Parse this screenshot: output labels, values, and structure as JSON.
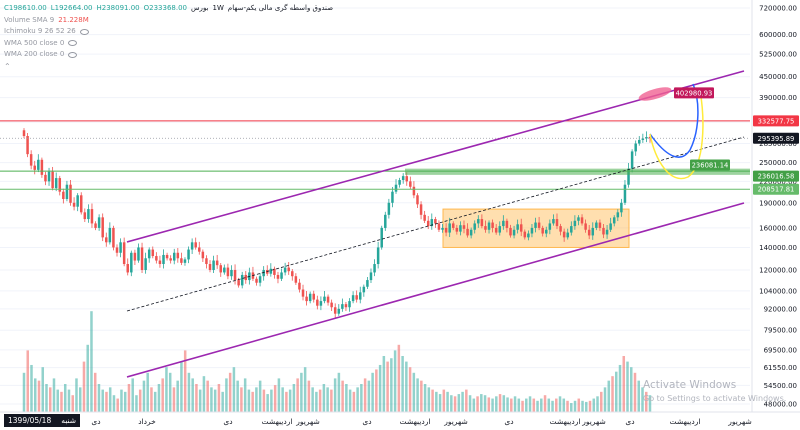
{
  "header": {
    "symbol_title": "صندوق واسطه گری مالی یکم-سهام",
    "interval": "1W",
    "exchange": "بورس",
    "ohlc": {
      "open": "O233368.00",
      "high": "H238091.00",
      "low": "L192664.00",
      "close": "C198610.00"
    },
    "volume_label": "Volume SMA 9",
    "volume_value": "21.228M",
    "indicators": [
      "Ichimoku 9 26 52 26",
      "WMA 500 close 0",
      "WMA 200 close 0"
    ]
  },
  "watermark": {
    "title": "Activate Windows",
    "subtitle": "Go to Settings to activate Windows."
  },
  "date_box": {
    "day": "شنبه",
    "date": "1399/05/18"
  },
  "colors": {
    "up": "#26a69a",
    "down": "#ef5350",
    "channel": "#9c27b0",
    "resistance": "#f23645",
    "support": "#4caf50",
    "zone": "#ffb74d",
    "arrow_blue": "#2962ff",
    "arrow_yellow": "#ffeb3b"
  },
  "chart_data": {
    "type": "candlestick",
    "y_scale": "log",
    "ylim": [
      50000,
      720000
    ],
    "y_ticks": [
      720000,
      600000,
      525000,
      450000,
      390000,
      330000,
      285000,
      250000,
      220000,
      190000,
      160000,
      140000,
      120000,
      104000,
      92000,
      79500,
      69500,
      61550,
      54500,
      48000
    ],
    "y_tick_labels": [
      "720000.00",
      "600000.00",
      "525000.00",
      "450000.00",
      "390000.00",
      "330000.00",
      "285000.00",
      "250000.00",
      "220000.00",
      "190000.00",
      "160000.00",
      "140000.00",
      "120000.00",
      "104000.00",
      "92000.00",
      "79500.00",
      "69500.00",
      "61550.00",
      "54500.00",
      "48000.00"
    ],
    "x_labels": [
      "دی",
      "خرداد",
      "دی",
      "اردیبهشت",
      "شهریور",
      "دی",
      "اردیبهشت",
      "شهریور",
      "دی",
      "اردیبهشت",
      "شهریور",
      "دی",
      "اردیبهشت",
      "شهریور"
    ],
    "price_labels": [
      {
        "value": 402980.93,
        "text": "402980.93",
        "color": "#c2185b"
      },
      {
        "value": 332577.75,
        "text": "332577.75",
        "color": "#f23645"
      },
      {
        "value": 295395.89,
        "text": "295395.89",
        "color": "#131722"
      },
      {
        "value": 236081.14,
        "text": "236081.14",
        "color": "#43a047"
      },
      {
        "value": 236016.58,
        "text": "236016.58",
        "color": "#43a047"
      },
      {
        "value": 208517.81,
        "text": "208517.81",
        "color": "#66bb6a"
      }
    ],
    "horizontal_levels": [
      {
        "value": 332577.75,
        "color": "#f23645"
      },
      {
        "value": 236016.58,
        "color": "#4caf50"
      },
      {
        "value": 208517.81,
        "color": "#66bb6a"
      }
    ],
    "close": [
      300000,
      265000,
      245000,
      238000,
      255000,
      230000,
      220000,
      235000,
      210000,
      225000,
      205000,
      195000,
      215000,
      190000,
      185000,
      200000,
      178000,
      170000,
      182000,
      165000,
      160000,
      172000,
      150000,
      145000,
      160000,
      140000,
      135000,
      145000,
      125000,
      118000,
      135000,
      128000,
      140000,
      120000,
      130000,
      138000,
      132000,
      128000,
      125000,
      133000,
      130000,
      128000,
      135000,
      130000,
      126000,
      129000,
      138000,
      145000,
      140000,
      136000,
      130000,
      125000,
      120000,
      128000,
      124000,
      118000,
      122000,
      115000,
      120000,
      112000,
      108000,
      116000,
      112000,
      118000,
      113000,
      110000,
      115000,
      120000,
      117000,
      121000,
      116000,
      113000,
      118000,
      122000,
      119000,
      115000,
      110000,
      105000,
      100000,
      97000,
      102000,
      98000,
      94000,
      97000,
      100000,
      96000,
      93000,
      89000,
      92000,
      95000,
      93000,
      97000,
      101000,
      98000,
      103000,
      107000,
      112000,
      118000,
      125000,
      140000,
      160000,
      175000,
      190000,
      205000,
      215000,
      222000,
      228000,
      220000,
      212000,
      200000,
      188000,
      175000,
      168000,
      162000,
      170000,
      165000,
      158000,
      160000,
      155000,
      165000,
      160000,
      156000,
      163000,
      159000,
      152000,
      158000,
      165000,
      170000,
      162000,
      158000,
      166000,
      160000,
      155000,
      162000,
      168000,
      160000,
      152000,
      158000,
      164000,
      156000,
      150000,
      154000,
      160000,
      166000,
      160000,
      154000,
      158000,
      165000,
      170000,
      162000,
      156000,
      150000,
      155000,
      162000,
      168000,
      172000,
      165000,
      158000,
      152000,
      160000,
      166000,
      160000,
      153000,
      158000,
      165000,
      172000,
      178000,
      190000,
      215000,
      240000,
      270000,
      285000,
      292000,
      295000,
      298000,
      295395
    ],
    "volume_heights": [
      0.35,
      0.55,
      0.42,
      0.3,
      0.28,
      0.4,
      0.25,
      0.22,
      0.3,
      0.2,
      0.18,
      0.25,
      0.2,
      0.15,
      0.3,
      0.22,
      0.45,
      0.6,
      0.9,
      0.35,
      0.25,
      0.2,
      0.18,
      0.22,
      0.15,
      0.12,
      0.2,
      0.18,
      0.25,
      0.3,
      0.15,
      0.2,
      0.28,
      0.35,
      0.22,
      0.18,
      0.25,
      0.3,
      0.4,
      0.35,
      0.22,
      0.28,
      0.45,
      0.55,
      0.35,
      0.3,
      0.25,
      0.2,
      0.32,
      0.28,
      0.22,
      0.2,
      0.25,
      0.18,
      0.3,
      0.35,
      0.4,
      0.28,
      0.22,
      0.3,
      0.2,
      0.18,
      0.22,
      0.28,
      0.2,
      0.16,
      0.2,
      0.24,
      0.3,
      0.22,
      0.18,
      0.2,
      0.25,
      0.3,
      0.35,
      0.4,
      0.28,
      0.22,
      0.18,
      0.2,
      0.25,
      0.22,
      0.2,
      0.3,
      0.35,
      0.28,
      0.25,
      0.2,
      0.18,
      0.22,
      0.25,
      0.3,
      0.28,
      0.35,
      0.38,
      0.42,
      0.5,
      0.45,
      0.48,
      0.55,
      0.6,
      0.5,
      0.45,
      0.4,
      0.35,
      0.3,
      0.28,
      0.25,
      0.22,
      0.2,
      0.18,
      0.16,
      0.2,
      0.18,
      0.15,
      0.14,
      0.16,
      0.18,
      0.2,
      0.15,
      0.12,
      0.14,
      0.16,
      0.15,
      0.13,
      0.12,
      0.14,
      0.16,
      0.15,
      0.13,
      0.12,
      0.14,
      0.12,
      0.1,
      0.12,
      0.14,
      0.12,
      0.1,
      0.12,
      0.15,
      0.12,
      0.1,
      0.12,
      0.14,
      0.12,
      0.1,
      0.08,
      0.1,
      0.12,
      0.1,
      0.09,
      0.1,
      0.12,
      0.14,
      0.18,
      0.22,
      0.28,
      0.32,
      0.36,
      0.42,
      0.5,
      0.45,
      0.4,
      0.35,
      0.28,
      0.22,
      0.18,
      0.15
    ]
  }
}
